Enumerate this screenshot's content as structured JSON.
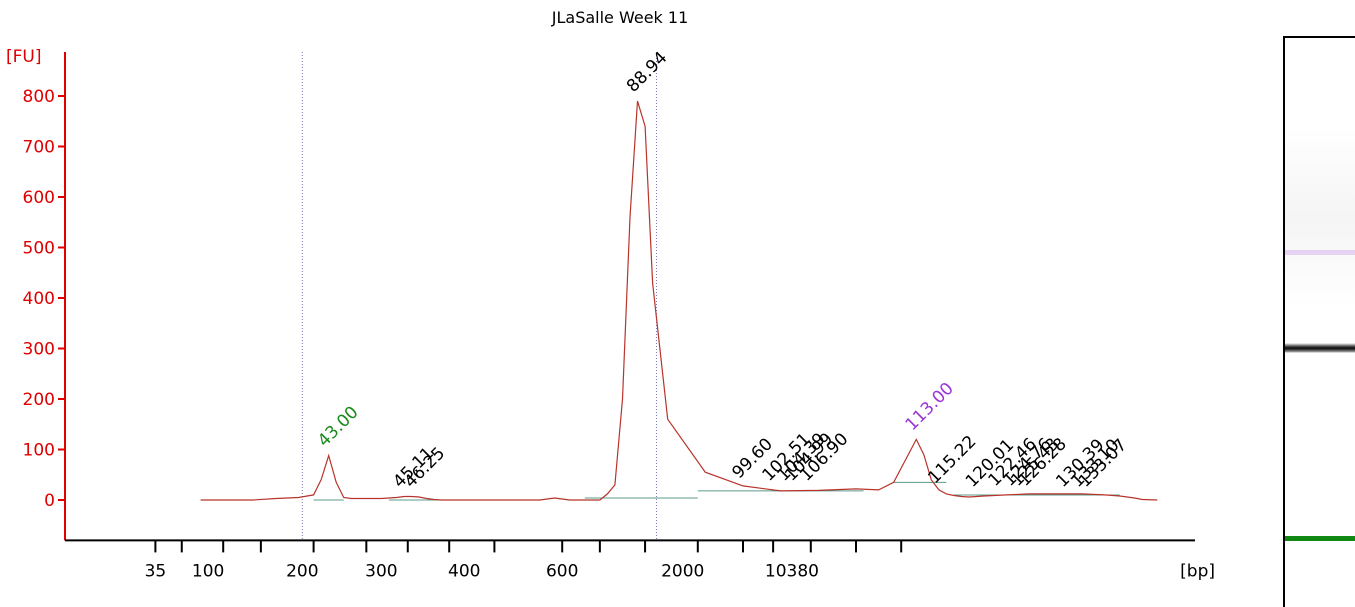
{
  "chart_data": {
    "type": "line",
    "title": "JLaSalle Week 11",
    "ylabel": "[FU]",
    "xlabel": "[bp]",
    "ylim": [
      -80,
      850
    ],
    "y_ticks": [
      0,
      100,
      200,
      300,
      400,
      500,
      600,
      700,
      800
    ],
    "x_tick_labels": [
      "35",
      "100",
      "200",
      "300",
      "400",
      "600",
      "2000",
      "10380"
    ],
    "series": [
      {
        "color": "#b8332b",
        "x": [
          18,
          22,
          25,
          28,
          31,
          33,
          34,
          35,
          36,
          37,
          38,
          40,
          42,
          44,
          45,
          46,
          47,
          48,
          49,
          50,
          51,
          52,
          53,
          55,
          60,
          63,
          65,
          67,
          69,
          71,
          72,
          73,
          74,
          75,
          76,
          77,
          78,
          80,
          85,
          90,
          95,
          100,
          105,
          108,
          110,
          113,
          114,
          115,
          116,
          117,
          118,
          119,
          120,
          122,
          125,
          128,
          131,
          135,
          138,
          140,
          142,
          143,
          145
        ],
        "y": [
          0,
          0,
          0,
          3,
          5,
          10,
          40,
          88,
          35,
          5,
          3,
          3,
          3,
          5,
          7,
          7,
          6,
          3,
          1,
          0,
          0,
          0,
          0,
          0,
          0,
          0,
          4,
          0,
          0,
          0,
          12,
          30,
          200,
          560,
          790,
          740,
          430,
          160,
          55,
          28,
          18,
          19,
          22,
          20,
          35,
          120,
          90,
          40,
          20,
          12,
          9,
          7,
          6,
          8,
          10,
          12,
          12,
          12,
          10,
          8,
          4,
          1,
          0
        ]
      }
    ],
    "peaks": [
      {
        "label": "43.00",
        "x": 35,
        "y": 88,
        "color": "#1a8a1a"
      },
      {
        "label": "45.11",
        "x": 45,
        "y": 7,
        "color": "#000000"
      },
      {
        "label": "46.25",
        "x": 46.5,
        "y": 7,
        "color": "#000000"
      },
      {
        "label": "88.94",
        "x": 76,
        "y": 790,
        "color": "#000000"
      },
      {
        "label": "99.60",
        "x": 90,
        "y": 25,
        "color": "#000000"
      },
      {
        "label": "102.51",
        "x": 94,
        "y": 20,
        "color": "#000000"
      },
      {
        "label": "104.39",
        "x": 96,
        "y": 20,
        "color": "#000000"
      },
      {
        "label": "104.99",
        "x": 97,
        "y": 20,
        "color": "#000000"
      },
      {
        "label": "106.90",
        "x": 99,
        "y": 20,
        "color": "#000000"
      },
      {
        "label": "113.00",
        "x": 113,
        "y": 120,
        "color": "#9a35d8"
      },
      {
        "label": "115.22",
        "x": 116,
        "y": 15,
        "color": "#000000"
      },
      {
        "label": "120.01",
        "x": 121,
        "y": 8,
        "color": "#000000"
      },
      {
        "label": "122.46",
        "x": 124,
        "y": 10,
        "color": "#000000"
      },
      {
        "label": "124.76",
        "x": 126,
        "y": 10,
        "color": "#000000"
      },
      {
        "label": "125.43",
        "x": 127,
        "y": 10,
        "color": "#000000"
      },
      {
        "label": "126.28",
        "x": 128,
        "y": 10,
        "color": "#000000"
      },
      {
        "label": "130.39",
        "x": 133,
        "y": 8,
        "color": "#000000"
      },
      {
        "label": "133.10",
        "x": 135,
        "y": 8,
        "color": "#000000"
      },
      {
        "label": "133.07",
        "x": 136,
        "y": 8,
        "color": "#000000"
      }
    ],
    "reference_lines_bp": [
      "200",
      "1000"
    ],
    "grid": false,
    "legend": "none"
  },
  "gel_lane": {
    "bands": [
      {
        "name": "upper-marker",
        "color": "#a040e0"
      },
      {
        "name": "main-band",
        "color": "#111111"
      },
      {
        "name": "lower-marker",
        "color": "#118811"
      }
    ]
  },
  "colors": {
    "axis": "#e00000",
    "trace": "#b8332b",
    "baseline": "#5a9a8a",
    "reference": "#7777bb"
  }
}
